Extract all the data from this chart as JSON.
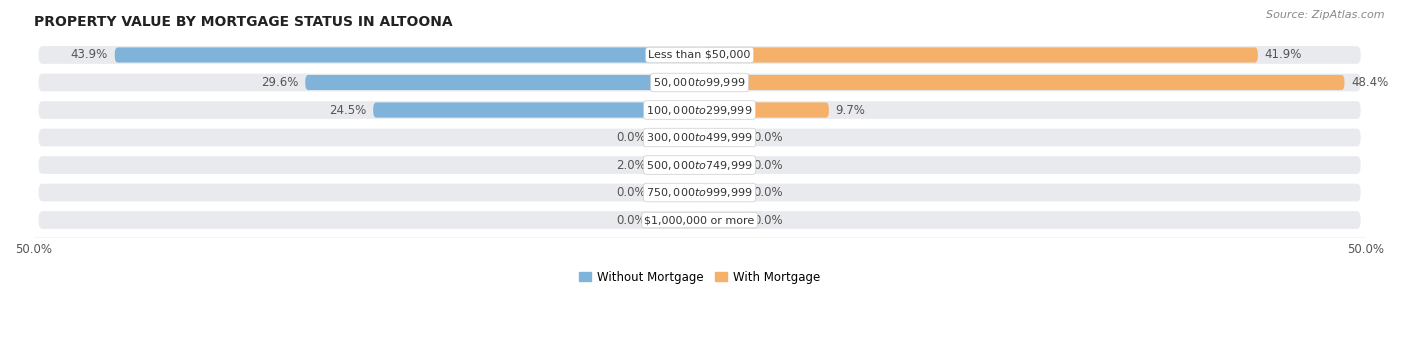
{
  "title": "PROPERTY VALUE BY MORTGAGE STATUS IN ALTOONA",
  "source": "Source: ZipAtlas.com",
  "categories": [
    "Less than $50,000",
    "$50,000 to $99,999",
    "$100,000 to $299,999",
    "$300,000 to $499,999",
    "$500,000 to $749,999",
    "$750,000 to $999,999",
    "$1,000,000 or more"
  ],
  "without_mortgage": [
    43.9,
    29.6,
    24.5,
    0.0,
    2.0,
    0.0,
    0.0
  ],
  "with_mortgage": [
    41.9,
    48.4,
    9.7,
    0.0,
    0.0,
    0.0,
    0.0
  ],
  "without_mortgage_color": "#7fb3d9",
  "with_mortgage_color": "#f5b06a",
  "without_mortgage_color_light": "#b8d4ea",
  "with_mortgage_color_light": "#f8cfa0",
  "row_bg_color": "#e8eaed",
  "axis_limit": 50.0,
  "min_stub": 3.5,
  "title_fontsize": 10,
  "source_fontsize": 8,
  "label_fontsize": 8.5,
  "cat_fontsize": 8,
  "legend_labels": [
    "Without Mortgage",
    "With Mortgage"
  ]
}
